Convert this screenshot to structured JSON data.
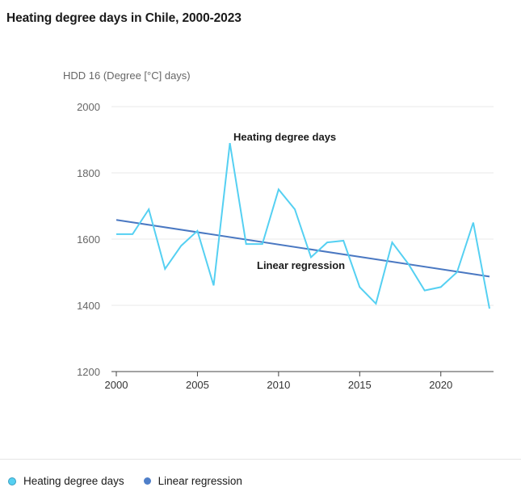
{
  "title": "Heating degree days in Chile, 2000-2023",
  "colors": {
    "hdd": "#55d0f2",
    "regression": "#4a78c2",
    "grid": "#e9e9e9",
    "axis": "#444444",
    "tick_text": "#666666"
  },
  "chart_data": {
    "type": "line",
    "ylabel": "HDD 16 (Degree [°C] days)",
    "ylim": [
      1200,
      2000
    ],
    "yticks": [
      1200,
      1400,
      1600,
      1800,
      2000
    ],
    "xlim": [
      2000,
      2023
    ],
    "xticks": [
      2000,
      2005,
      2010,
      2015,
      2020
    ],
    "grid": true,
    "x": [
      2000,
      2001,
      2002,
      2003,
      2004,
      2005,
      2006,
      2007,
      2008,
      2009,
      2010,
      2011,
      2012,
      2013,
      2014,
      2015,
      2016,
      2017,
      2018,
      2019,
      2020,
      2021,
      2022,
      2023
    ],
    "series": [
      {
        "name": "Heating degree days",
        "values": [
          1615,
          1615,
          1690,
          1510,
          1580,
          1625,
          1460,
          1890,
          1585,
          1585,
          1750,
          1690,
          1545,
          1590,
          1595,
          1455,
          1405,
          1590,
          1525,
          1445,
          1455,
          1500,
          1650,
          1390
        ]
      },
      {
        "name": "Linear regression",
        "values": [
          1658,
          1649,
          1641,
          1632,
          1624,
          1615,
          1607,
          1598,
          1590,
          1581,
          1573,
          1564,
          1556,
          1547,
          1539,
          1530,
          1522,
          1513,
          1505,
          1496,
          1488,
          1479,
          1471,
          1486
        ]
      }
    ],
    "annotations": [
      "Heating degree days",
      "Linear regression"
    ]
  },
  "legend": {
    "items": [
      {
        "label": "Heating degree days"
      },
      {
        "label": "Linear regression"
      }
    ]
  }
}
